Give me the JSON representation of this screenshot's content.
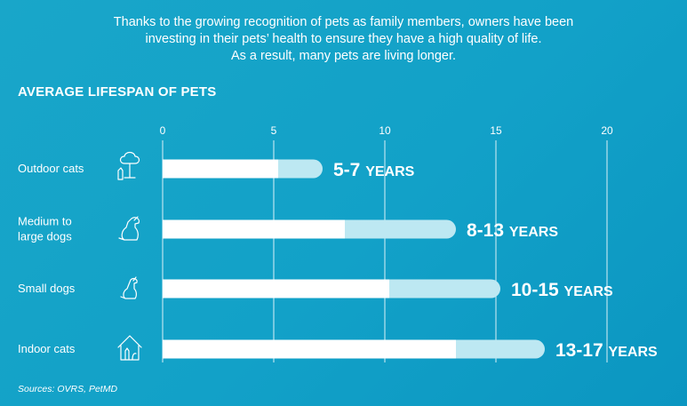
{
  "intro_lines": [
    "Thanks to the growing recognition of pets as family members, owners have been",
    "investing in their pets’ health to ensure they have a high quality of life.",
    "As a result, many pets are living longer."
  ],
  "source": "Sources: OVRS, PetMD",
  "colors": {
    "background": "#14a2c8",
    "bar_min": "#ffffff",
    "bar_range": "#bde8f2",
    "gridline": "#ffffff"
  },
  "chart_data": {
    "type": "bar",
    "orientation": "horizontal",
    "stacked": true,
    "title": "AVERAGE LIFESPAN OF PETS",
    "xlim": [
      0,
      20
    ],
    "xticks": [
      0,
      5,
      10,
      15,
      20
    ],
    "grid": true,
    "categories": [
      {
        "lines": [
          "Outdoor cats"
        ],
        "icon": "tree-cat-icon",
        "min": 5.2,
        "max": 7.2,
        "label_num": "5-7",
        "label_unit": "YEARS"
      },
      {
        "lines": [
          "Medium to",
          "large dogs"
        ],
        "icon": "sitting-dog-icon",
        "min": 8.2,
        "max": 13.2,
        "label_num": "8-13",
        "label_unit": "YEARS"
      },
      {
        "lines": [
          "Small dogs"
        ],
        "icon": "small-dog-icon",
        "min": 10.2,
        "max": 15.2,
        "label_num": "10-15",
        "label_unit": "YEARS"
      },
      {
        "lines": [
          "Indoor cats"
        ],
        "icon": "house-cat-icon",
        "min": 13.2,
        "max": 17.2,
        "label_num": "13-17",
        "label_unit": "YEARS"
      }
    ]
  }
}
